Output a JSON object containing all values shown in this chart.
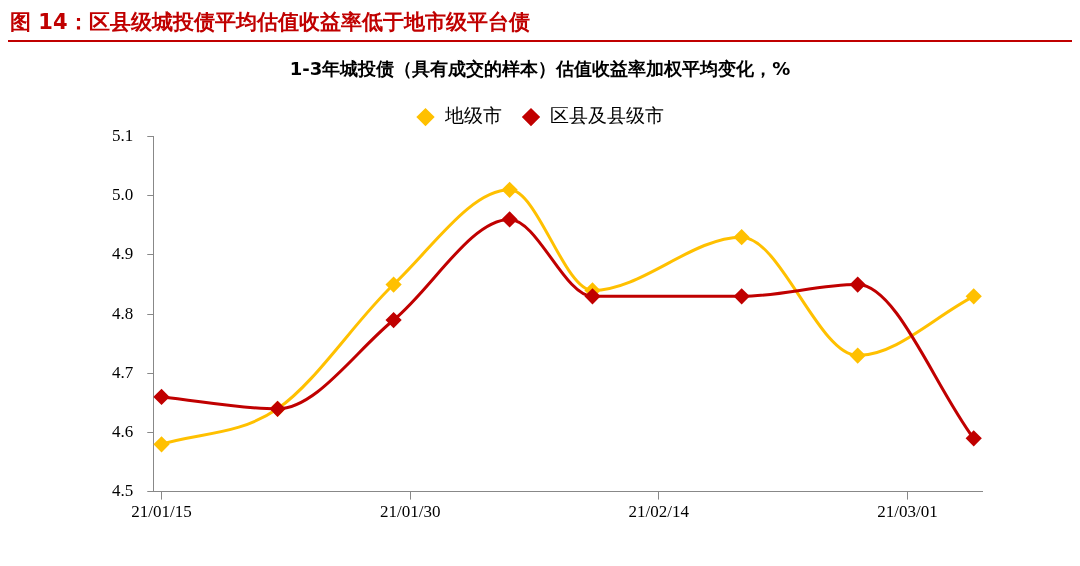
{
  "chart_data": {
    "type": "line",
    "title": "图 14：区县级城投债平均估值收益率低于地市级平台债",
    "subtitle": "1-3年城投债（具有成交的样本）估值收益率加权平均变化，%",
    "x": [
      "--01-15",
      "--01-22",
      "--01-29",
      "--02-05",
      "--02-10",
      "--02-19",
      "--02-26",
      "--03-05"
    ],
    "series": [
      {
        "name": "地级市",
        "color": "#ffc000",
        "values": [
          4.58,
          4.64,
          4.85,
          5.01,
          4.84,
          4.93,
          4.73,
          4.83
        ]
      },
      {
        "name": "区县及县级市",
        "color": "#c00000",
        "values": [
          4.66,
          4.64,
          4.79,
          4.96,
          4.83,
          4.83,
          4.85,
          4.59
        ]
      }
    ],
    "xlim": [
      "--01-14T12:00",
      "--03-05T12:00"
    ],
    "xticks": [
      {
        "value": "--01-15",
        "label": "21/01/15"
      },
      {
        "value": "--01-30",
        "label": "21/01/30"
      },
      {
        "value": "--02-14",
        "label": "21/02/14"
      },
      {
        "value": "--03-01",
        "label": "21/03/01"
      }
    ],
    "ylim": [
      4.5,
      5.1
    ],
    "yticks": [
      {
        "value": 4.5,
        "label": "4.5"
      },
      {
        "value": 4.6,
        "label": "4.6"
      },
      {
        "value": 4.7,
        "label": "4.7"
      },
      {
        "value": 4.8,
        "label": "4.8"
      },
      {
        "value": 4.9,
        "label": "4.9"
      },
      {
        "value": 5,
        "label": "5.0"
      },
      {
        "value": 5.1,
        "label": "5.1"
      }
    ],
    "grid": false,
    "legend": "top",
    "marker": "diamond",
    "line_style": "solid"
  }
}
